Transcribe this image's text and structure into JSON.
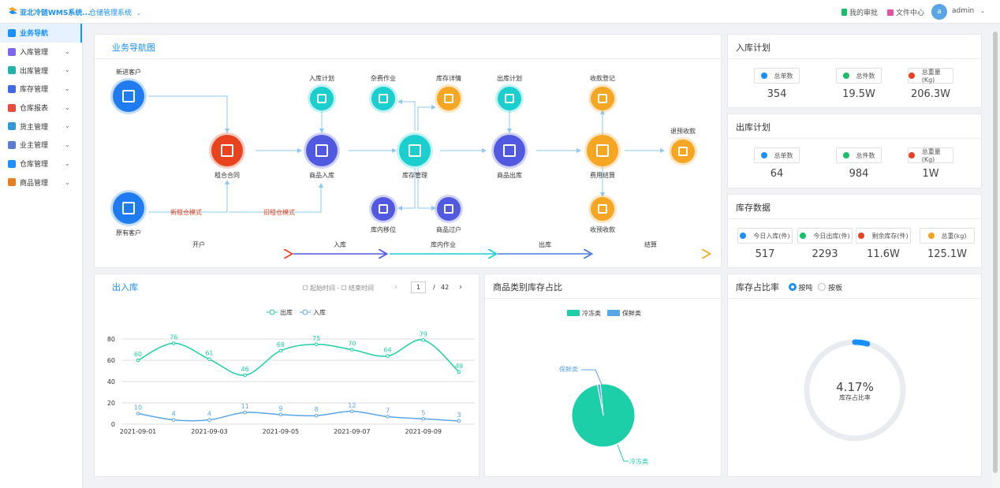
{
  "topbar": {
    "brand": "亚北冷链WMS系统...",
    "system": "仓储管理系统",
    "approval": "我的审批",
    "files": "文件中心",
    "avatar_letter": "a",
    "user": "admin"
  },
  "sidebar": {
    "items": [
      {
        "label": "业务导航",
        "color": "#1890ff"
      },
      {
        "label": "入库管理",
        "color": "#7b68ee"
      },
      {
        "label": "出库管理",
        "color": "#20b2aa"
      },
      {
        "label": "库存管理",
        "color": "#4169e1"
      },
      {
        "label": "仓库报表",
        "color": "#e74c3c"
      },
      {
        "label": "货主管理",
        "color": "#3498db"
      },
      {
        "label": "业主管理",
        "color": "#5b7bd5"
      },
      {
        "label": "仓库管理",
        "color": "#1e90ff"
      },
      {
        "label": "商品管理",
        "color": "#e67e22"
      }
    ]
  },
  "nav_chart": {
    "title": "业务导航图",
    "nodes": {
      "new_customer": "新进客户",
      "old_customer": "原有客户",
      "lease_contract": "租合合同",
      "goods_in": "商品入库",
      "stock_manage": "库存管理",
      "goods_out": "商品出库",
      "fee_settle": "费用结算",
      "in_plan": "入库计划",
      "misc_work": "杂费作业",
      "stock_detail": "库存详情",
      "out_plan": "出库计划",
      "receipt_reg": "收款登记",
      "refund": "退预收款",
      "stock_move": "库内移位",
      "goods_transfer": "商品过户",
      "prepay": "收预收款"
    },
    "edge_new": "新租仓模式",
    "edge_old": "旧租仓模式",
    "stages": [
      "开户",
      "入库",
      "库内作业",
      "出库",
      "结算"
    ]
  },
  "in_plan": {
    "title": "入库计划",
    "stats": [
      {
        "label": "总单数",
        "value": "354",
        "color": "#1890ff"
      },
      {
        "label": "总件数",
        "value": "19.5W",
        "color": "#19be6b"
      },
      {
        "label": "总重量(Kg)",
        "value": "206.3W",
        "color": "#e8431e"
      }
    ]
  },
  "out_plan": {
    "title": "出库计划",
    "stats": [
      {
        "label": "总单数",
        "value": "64",
        "color": "#1890ff"
      },
      {
        "label": "总件数",
        "value": "984",
        "color": "#19be6b"
      },
      {
        "label": "总重量(Kg)",
        "value": "1W",
        "color": "#e8431e"
      }
    ]
  },
  "stock_data": {
    "title": "库存数据",
    "stats": [
      {
        "label": "今日入库(件)",
        "value": "517",
        "color": "#1890ff"
      },
      {
        "label": "今日出库(件)",
        "value": "2293",
        "color": "#19be6b"
      },
      {
        "label": "剩余库存(件)",
        "value": "11.6W",
        "color": "#e8431e"
      },
      {
        "label": "总重(kg)",
        "value": "125.1W",
        "color": "#f7a21b"
      }
    ]
  },
  "inout": {
    "title": "出入库",
    "start_placeholder": "起始时间",
    "sep": "-",
    "end_placeholder": "结束时间",
    "page": "1",
    "page_sep": "/",
    "total_pages": "42"
  },
  "category": {
    "title": "商品类别库存占比",
    "legend": [
      "冷冻类",
      "保鲜类"
    ],
    "colors": [
      "#1ccfa8",
      "#5aa5e8"
    ]
  },
  "ratio": {
    "title": "库存占比率",
    "options": [
      "按吨",
      "按板"
    ],
    "selected": "按吨",
    "value_text": "4.17%",
    "sub_text": "库存占比率",
    "fraction": 0.0417,
    "track_color": "#e8ecf1",
    "arc_color": "#1890ff"
  },
  "chart_data": [
    {
      "type": "line",
      "x": [
        "2021-09-01",
        "2021-09-02",
        "2021-09-03",
        "2021-09-04",
        "2021-09-05",
        "2021-09-06",
        "2021-09-07",
        "2021-09-08",
        "2021-09-09",
        "2021-09-10"
      ],
      "xticks": [
        "2021-09-01",
        "2021-09-03",
        "2021-09-05",
        "2021-09-07",
        "2021-09-09"
      ],
      "series": [
        {
          "name": "出库",
          "values": [
            60,
            76,
            61,
            46,
            69,
            75,
            70,
            64,
            79,
            49
          ],
          "color": "#1ccfa8"
        },
        {
          "name": "入库",
          "values": [
            10,
            4,
            4,
            11,
            9,
            8,
            12,
            7,
            5,
            3
          ],
          "color": "#5aa5e8"
        }
      ],
      "ylim": [
        0,
        80
      ],
      "yticks": [
        0,
        20,
        40,
        60,
        80
      ],
      "grid": true,
      "legend": "top-center"
    },
    {
      "type": "pie",
      "slices": [
        {
          "name": "冷冻类",
          "value": 98.5,
          "color": "#1ccfa8"
        },
        {
          "name": "保鲜类",
          "value": 1.5,
          "color": "#5aa5e8"
        }
      ],
      "legend": "top-center"
    }
  ]
}
